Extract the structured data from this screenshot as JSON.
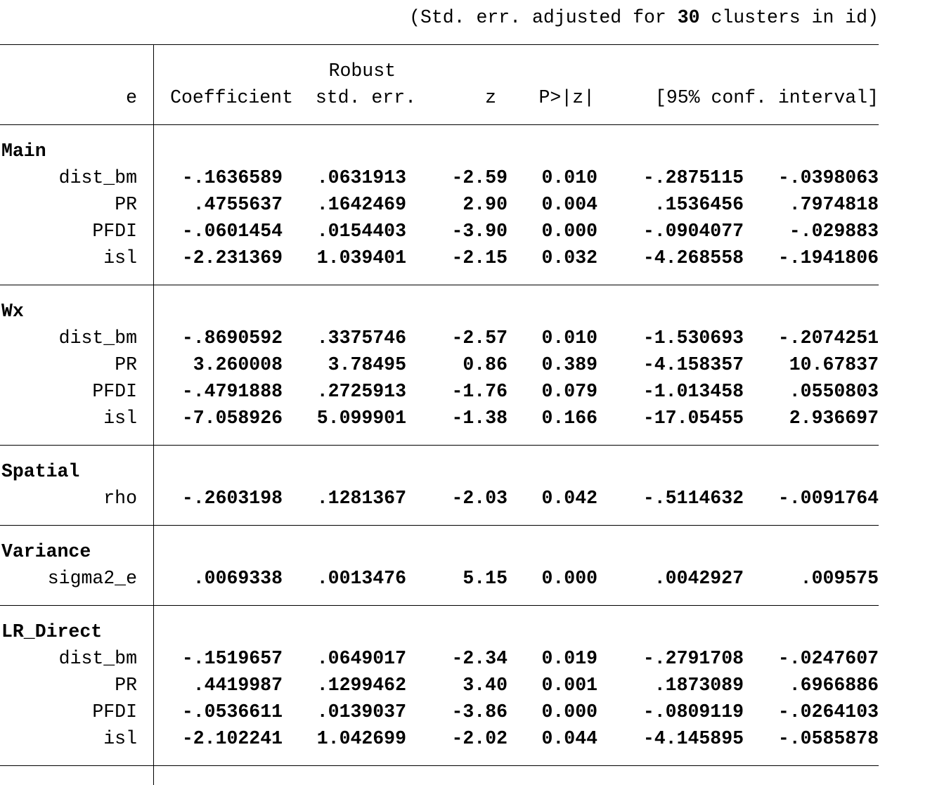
{
  "note": {
    "prefix": "(Std. err. adjusted for",
    "clusters": "30",
    "suffix": "clusters in id)"
  },
  "header": {
    "depvar": "e",
    "coef": "Coefficient",
    "robust": "Robust",
    "se": "std. err.",
    "z": "z",
    "p": "P>|z|",
    "ci": "[95% conf. interval]"
  },
  "groups": [
    {
      "name": "Main",
      "rows": [
        {
          "var": "dist_bm",
          "cells": [
            "-.1636589",
            ".0631913",
            "-2.59",
            "0.010",
            "-.2875115",
            "-.0398063"
          ]
        },
        {
          "var": "PR",
          "cells": [
            ".4755637",
            ".1642469",
            "2.90",
            "0.004",
            ".1536456",
            ".7974818"
          ]
        },
        {
          "var": "PFDI",
          "cells": [
            "-.0601454",
            ".0154403",
            "-3.90",
            "0.000",
            "-.0904077",
            "-.029883"
          ]
        },
        {
          "var": "isl",
          "cells": [
            "-2.231369",
            "1.039401",
            "-2.15",
            "0.032",
            "-4.268558",
            "-.1941806"
          ]
        }
      ]
    },
    {
      "name": "Wx",
      "rows": [
        {
          "var": "dist_bm",
          "cells": [
            "-.8690592",
            ".3375746",
            "-2.57",
            "0.010",
            "-1.530693",
            "-.2074251"
          ]
        },
        {
          "var": "PR",
          "cells": [
            "3.260008",
            "3.78495",
            "0.86",
            "0.389",
            "-4.158357",
            "10.67837"
          ]
        },
        {
          "var": "PFDI",
          "cells": [
            "-.4791888",
            ".2725913",
            "-1.76",
            "0.079",
            "-1.013458",
            ".0550803"
          ]
        },
        {
          "var": "isl",
          "cells": [
            "-7.058926",
            "5.099901",
            "-1.38",
            "0.166",
            "-17.05455",
            "2.936697"
          ]
        }
      ]
    },
    {
      "name": "Spatial",
      "rows": [
        {
          "var": "rho",
          "cells": [
            "-.2603198",
            ".1281367",
            "-2.03",
            "0.042",
            "-.5114632",
            "-.0091764"
          ]
        }
      ]
    },
    {
      "name": "Variance",
      "rows": [
        {
          "var": "sigma2_e",
          "cells": [
            ".0069338",
            ".0013476",
            "5.15",
            "0.000",
            ".0042927",
            ".009575"
          ]
        }
      ]
    },
    {
      "name": "LR_Direct",
      "rows": [
        {
          "var": "dist_bm",
          "cells": [
            "-.1519657",
            ".0649017",
            "-2.34",
            "0.019",
            "-.2791708",
            "-.0247607"
          ]
        },
        {
          "var": "PR",
          "cells": [
            ".4419987",
            ".1299462",
            "3.40",
            "0.001",
            ".1873089",
            ".6966886"
          ]
        },
        {
          "var": "PFDI",
          "cells": [
            "-.0536611",
            ".0139037",
            "-3.86",
            "0.000",
            "-.0809119",
            "-.0264103"
          ]
        },
        {
          "var": "isl",
          "cells": [
            "-2.102241",
            "1.042699",
            "-2.02",
            "0.044",
            "-4.145895",
            "-.0585878"
          ]
        }
      ]
    }
  ]
}
